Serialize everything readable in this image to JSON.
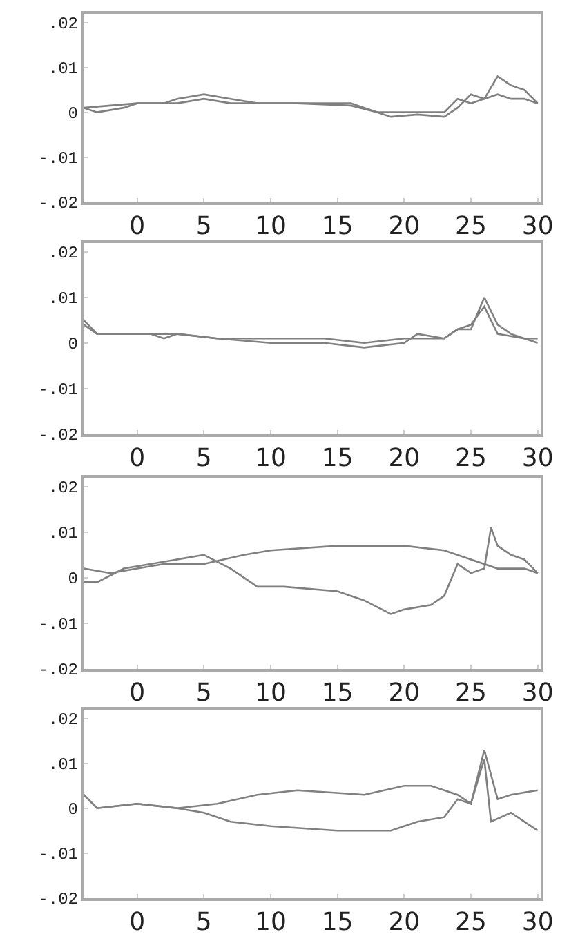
{
  "chart_data": [
    {
      "type": "line",
      "xlim": [
        -4,
        30.2
      ],
      "xticks": [
        0,
        5,
        10,
        15,
        20,
        25,
        30
      ],
      "ylim": [
        -0.02,
        0.022
      ],
      "yticks": [
        {
          "value": 0.02,
          "label": ".02"
        },
        {
          "value": 0.01,
          "label": ".01"
        },
        0,
        {
          "value": -0.01,
          "label": "-.01"
        },
        {
          "value": -0.02,
          "label": "-.02"
        }
      ],
      "series": [
        {
          "color": "#808080",
          "x": [
            -4,
            -3,
            -1,
            0,
            2,
            3,
            5,
            7,
            9,
            12,
            16,
            18,
            19,
            21,
            23,
            24,
            25,
            26,
            27,
            28,
            29,
            30
          ],
          "values": [
            0.001,
            0,
            0.001,
            0.002,
            0.002,
            0.003,
            0.004,
            0.003,
            0.002,
            0.002,
            0.0015,
            0,
            -0.001,
            -0.0005,
            -0.001,
            0.001,
            0.004,
            0.003,
            0.008,
            0.006,
            0.005,
            0.002
          ]
        },
        {
          "color": "#808080",
          "x": [
            -4,
            0,
            3,
            5,
            7,
            10,
            16,
            18,
            20,
            23,
            24,
            25,
            27,
            28,
            29,
            30
          ],
          "values": [
            0.001,
            0.002,
            0.002,
            0.003,
            0.002,
            0.002,
            0.002,
            0,
            0,
            0,
            0.003,
            0.002,
            0.004,
            0.003,
            0.003,
            0.002
          ]
        }
      ]
    },
    {
      "type": "line",
      "xlim": [
        -4,
        30.2
      ],
      "xticks": [
        0,
        5,
        10,
        15,
        20,
        25,
        30
      ],
      "ylim": [
        -0.02,
        0.022
      ],
      "yticks": [
        {
          "value": 0.02,
          "label": ".02"
        },
        {
          "value": 0.01,
          "label": ".01"
        },
        0,
        {
          "value": -0.01,
          "label": "-.01"
        },
        {
          "value": -0.02,
          "label": "-.02"
        }
      ],
      "series": [
        {
          "color": "#808080",
          "x": [
            -4,
            -3,
            0,
            1,
            2,
            3,
            6,
            10,
            14,
            17,
            20,
            21,
            23,
            24,
            25,
            26,
            27,
            28,
            30
          ],
          "values": [
            0.005,
            0.002,
            0.002,
            0.002,
            0.001,
            0.002,
            0.001,
            0,
            0,
            -0.001,
            0,
            0.002,
            0.001,
            0.003,
            0.003,
            0.01,
            0.004,
            0.002,
            0
          ]
        },
        {
          "color": "#808080",
          "x": [
            -4,
            -3,
            3,
            6,
            10,
            14,
            17,
            20,
            23,
            24,
            25,
            26,
            27,
            29,
            30
          ],
          "values": [
            0.004,
            0.002,
            0.002,
            0.001,
            0.001,
            0.001,
            0,
            0.001,
            0.001,
            0.003,
            0.004,
            0.008,
            0.002,
            0.001,
            0.001
          ]
        }
      ]
    },
    {
      "type": "line",
      "xlim": [
        -4,
        30.2
      ],
      "xticks": [
        0,
        5,
        10,
        15,
        20,
        25,
        30
      ],
      "ylim": [
        -0.02,
        0.022
      ],
      "yticks": [
        {
          "value": 0.02,
          "label": ".02"
        },
        {
          "value": 0.01,
          "label": ".01"
        },
        0,
        {
          "value": -0.01,
          "label": "-.01"
        },
        {
          "value": -0.02,
          "label": "-.02"
        }
      ],
      "series": [
        {
          "color": "#808080",
          "x": [
            -4,
            -2,
            0,
            2,
            5,
            8,
            10,
            15,
            20,
            23,
            25,
            27,
            29,
            30
          ],
          "values": [
            0.002,
            0.001,
            0.002,
            0.003,
            0.003,
            0.005,
            0.006,
            0.007,
            0.007,
            0.006,
            0.004,
            0.002,
            0.002,
            0.001
          ]
        },
        {
          "color": "#808080",
          "x": [
            -4,
            -3,
            -1,
            1,
            3,
            5,
            7,
            9,
            11,
            15,
            17,
            19,
            20,
            22,
            23,
            24,
            25,
            26,
            26.5,
            27,
            28,
            29,
            30
          ],
          "values": [
            -0.001,
            -0.001,
            0.002,
            0.003,
            0.004,
            0.005,
            0.002,
            -0.002,
            -0.002,
            -0.003,
            -0.005,
            -0.008,
            -0.007,
            -0.006,
            -0.004,
            0.003,
            0.001,
            0.002,
            0.011,
            0.007,
            0.005,
            0.004,
            0.001
          ]
        }
      ]
    },
    {
      "type": "line",
      "xlim": [
        -4,
        30.2
      ],
      "xticks": [
        0,
        5,
        10,
        15,
        20,
        25,
        30
      ],
      "ylim": [
        -0.02,
        0.022
      ],
      "yticks": [
        {
          "value": 0.02,
          "label": ".02"
        },
        {
          "value": 0.01,
          "label": ".01"
        },
        0,
        {
          "value": -0.01,
          "label": "-.01"
        },
        {
          "value": -0.02,
          "label": "-.02"
        }
      ],
      "series": [
        {
          "color": "#808080",
          "x": [
            -4,
            -3,
            0,
            3,
            6,
            9,
            12,
            17,
            20,
            22,
            24,
            25,
            26,
            27,
            28,
            30
          ],
          "values": [
            0.003,
            0,
            0.001,
            0,
            0.001,
            0.003,
            0.004,
            0.003,
            0.005,
            0.005,
            0.003,
            0.001,
            0.013,
            0.002,
            0.003,
            0.004
          ]
        },
        {
          "color": "#808080",
          "x": [
            -4,
            -3,
            0,
            3,
            5,
            7,
            10,
            15,
            19,
            21,
            23,
            24,
            25,
            26,
            26.5,
            28,
            30
          ],
          "values": [
            0.003,
            0,
            0.001,
            0,
            -0.001,
            -0.003,
            -0.004,
            -0.005,
            -0.005,
            -0.003,
            -0.002,
            0.002,
            0.001,
            0.011,
            -0.003,
            -0.001,
            -0.005
          ]
        }
      ]
    }
  ]
}
